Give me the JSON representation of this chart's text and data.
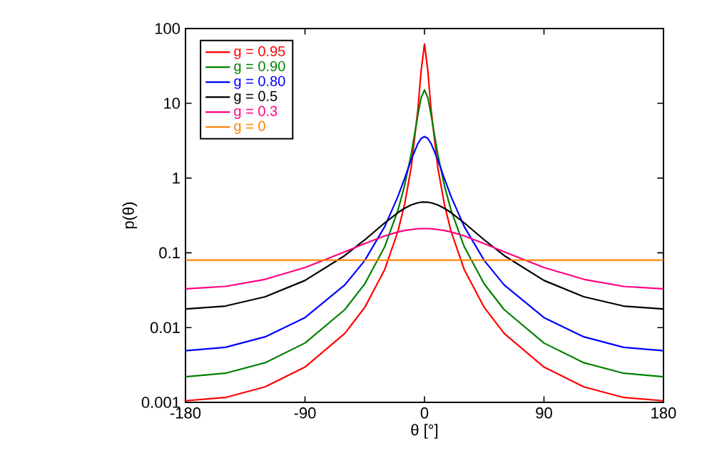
{
  "chart_data": {
    "type": "line",
    "xlabel": "θ [°]",
    "ylabel": "p(θ)",
    "log": "y",
    "x": [
      -180,
      -150,
      -120,
      -90,
      -60,
      -45,
      -30,
      -20,
      -15,
      -10,
      -5,
      -2.5,
      0,
      2.5,
      5,
      10,
      15,
      20,
      30,
      45,
      60,
      90,
      120,
      150,
      180
    ],
    "xlim": [
      -180,
      180
    ],
    "xticks": [
      -180,
      -90,
      0,
      90,
      180
    ],
    "ylim": [
      0.001,
      100
    ],
    "yticks": [
      0.001,
      0.01,
      0.1,
      1,
      10,
      100
    ],
    "legend": "top left",
    "grid": false,
    "series": [
      {
        "name": "g = 0.95",
        "color": "#ff0000",
        "values": [
          0.00105,
          0.00116,
          0.00161,
          0.00296,
          0.00835,
          0.0186,
          0.0595,
          0.194,
          0.444,
          1.39,
          8.12,
          27.4,
          62.1,
          27.4,
          8.12,
          1.39,
          0.444,
          0.194,
          0.0595,
          0.0186,
          0.00835,
          0.00296,
          0.00161,
          0.00116,
          0.00105
        ]
      },
      {
        "name": "g = 0.90",
        "color": "#008000",
        "values": [
          0.0022,
          0.00245,
          0.00339,
          0.00621,
          0.0174,
          0.0384,
          0.12,
          0.371,
          0.793,
          2.09,
          6.95,
          11.9,
          15.1,
          11.9,
          6.95,
          2.09,
          0.793,
          0.371,
          0.12,
          0.0384,
          0.0174,
          0.00621,
          0.00339,
          0.00245,
          0.0022
        ]
      },
      {
        "name": "g = 0.80",
        "color": "#0000ff",
        "values": [
          0.00491,
          0.00544,
          0.00752,
          0.0136,
          0.0372,
          0.079,
          0.223,
          0.568,
          0.985,
          1.76,
          2.89,
          3.39,
          3.58,
          3.39,
          2.89,
          1.76,
          0.985,
          0.568,
          0.223,
          0.079,
          0.0372,
          0.0136,
          0.00752,
          0.00544,
          0.00491
        ]
      },
      {
        "name": "g = 0.5",
        "color": "#000000",
        "values": [
          0.0177,
          0.0194,
          0.0258,
          0.0427,
          0.0919,
          0.149,
          0.251,
          0.345,
          0.394,
          0.437,
          0.467,
          0.475,
          0.477,
          0.475,
          0.467,
          0.437,
          0.394,
          0.345,
          0.251,
          0.149,
          0.0919,
          0.0427,
          0.0258,
          0.0194,
          0.0177
        ]
      },
      {
        "name": "g = 0.3",
        "color": "#ff0080",
        "values": [
          0.033,
          0.0355,
          0.0442,
          0.0636,
          0.103,
          0.133,
          0.168,
          0.19,
          0.199,
          0.205,
          0.21,
          0.211,
          0.211,
          0.211,
          0.21,
          0.205,
          0.199,
          0.19,
          0.168,
          0.133,
          0.103,
          0.0636,
          0.0442,
          0.0355,
          0.033
        ]
      },
      {
        "name": "g = 0",
        "color": "#ff8000",
        "x": [
          -180,
          180
        ],
        "values": [
          0.08,
          0.08
        ]
      }
    ]
  }
}
